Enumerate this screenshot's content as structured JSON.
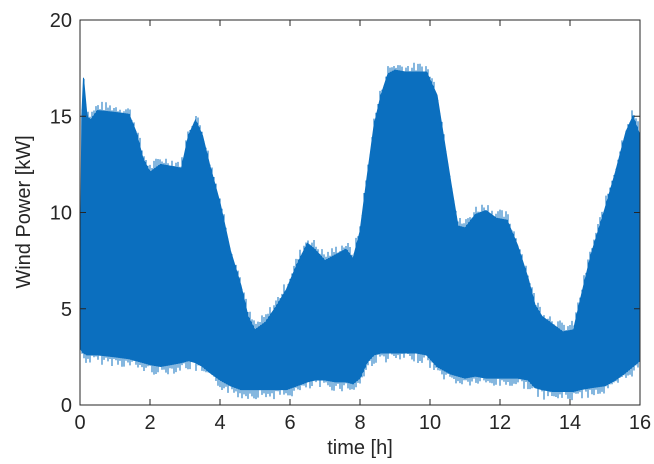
{
  "chart_data": {
    "type": "area",
    "xlabel": "time [h]",
    "ylabel": "Wind Power [kW]",
    "xlim": [
      0,
      16
    ],
    "ylim": [
      0,
      20
    ],
    "xticks": [
      0,
      2,
      4,
      6,
      8,
      10,
      12,
      14,
      16
    ],
    "yticks": [
      0,
      5,
      10,
      15,
      20
    ],
    "grid": false,
    "series_color": "#0b6fbf",
    "series": [
      {
        "x": [
          0,
          0.05,
          0.1,
          0.2,
          0.3,
          0.5,
          1.0,
          1.4,
          1.6,
          1.8,
          2.0,
          2.3,
          2.6,
          2.9,
          3.1,
          3.3,
          3.5,
          3.7,
          4.0,
          4.3,
          4.6,
          4.8,
          5.0,
          5.3,
          5.6,
          5.9,
          6.2,
          6.5,
          6.7,
          7.0,
          7.3,
          7.6,
          7.8,
          8.0,
          8.2,
          8.4,
          8.6,
          8.8,
          9.0,
          9.3,
          9.6,
          9.9,
          10.2,
          10.4,
          10.6,
          10.8,
          11.0,
          11.3,
          11.6,
          11.9,
          12.2,
          12.5,
          12.8,
          13.0,
          13.2,
          13.5,
          13.8,
          14.1,
          14.3,
          14.6,
          15.0,
          15.3,
          15.6,
          15.8,
          16.0
        ],
        "upper": [
          3.5,
          15.0,
          17.0,
          15.0,
          14.8,
          15.3,
          15.2,
          15.1,
          14.2,
          12.8,
          12.1,
          12.5,
          12.4,
          12.3,
          14.0,
          14.8,
          14.0,
          12.5,
          10.5,
          8.0,
          6.2,
          4.6,
          3.9,
          4.3,
          5.1,
          6.0,
          7.3,
          8.4,
          8.1,
          7.5,
          7.8,
          8.1,
          7.6,
          9.0,
          11.8,
          14.5,
          16.1,
          17.2,
          17.4,
          17.3,
          17.3,
          17.3,
          16.1,
          13.8,
          11.5,
          9.3,
          9.2,
          9.9,
          10.1,
          9.7,
          9.6,
          8.3,
          6.6,
          5.2,
          4.6,
          4.2,
          3.8,
          3.9,
          5.5,
          7.8,
          10.2,
          12.1,
          14.2,
          15.0,
          14.0
        ],
        "lower": [
          3.0,
          2.8,
          2.7,
          2.6,
          2.6,
          2.6,
          2.5,
          2.4,
          2.3,
          2.2,
          2.1,
          2.0,
          2.1,
          2.2,
          2.3,
          2.2,
          2.0,
          1.7,
          1.3,
          1.0,
          0.8,
          0.8,
          0.8,
          0.8,
          0.8,
          0.8,
          1.0,
          1.2,
          1.3,
          1.3,
          1.2,
          1.2,
          1.1,
          1.4,
          2.2,
          2.6,
          2.7,
          2.7,
          2.7,
          2.7,
          2.7,
          2.6,
          2.0,
          1.8,
          1.6,
          1.5,
          1.4,
          1.5,
          1.4,
          1.4,
          1.4,
          1.4,
          1.3,
          0.9,
          0.8,
          0.7,
          0.7,
          0.7,
          0.8,
          0.9,
          1.0,
          1.3,
          1.7,
          2.0,
          2.3
        ]
      }
    ]
  }
}
